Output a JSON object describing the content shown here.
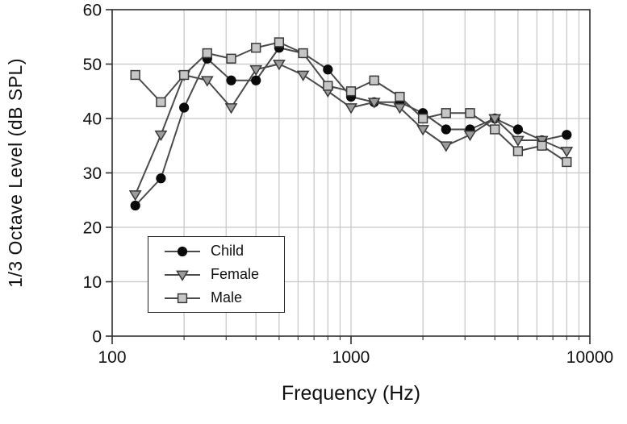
{
  "chart_data": {
    "type": "line",
    "title": "",
    "xlabel": "Frequency (Hz)",
    "ylabel": "1/3 Octave Level (dB SPL)",
    "x_scale": "log",
    "xlim": [
      100,
      10000
    ],
    "ylim": [
      0,
      60
    ],
    "y_ticks": [
      0,
      10,
      20,
      30,
      40,
      50,
      60
    ],
    "x_ticks": [
      100,
      1000,
      10000
    ],
    "x_tick_labels": [
      "100",
      "1000",
      "10000"
    ],
    "grid": true,
    "legend_position": "lower-left",
    "x": [
      125,
      160,
      200,
      250,
      315,
      400,
      500,
      630,
      800,
      1000,
      1250,
      1600,
      2000,
      2500,
      3150,
      4000,
      5000,
      6300,
      8000
    ],
    "series": [
      {
        "name": "Child",
        "marker": "circle",
        "marker_fill": "#0a0a0a",
        "marker_stroke": "#0a0a0a",
        "line_color": "#4a4a4a",
        "values": [
          24,
          29,
          42,
          51,
          47,
          47,
          53,
          52,
          49,
          44,
          43,
          43,
          41,
          38,
          38,
          40,
          38,
          36,
          37
        ]
      },
      {
        "name": "Female",
        "marker": "triangle-down",
        "marker_fill": "#9c9c9c",
        "marker_stroke": "#3a3a3a",
        "line_color": "#4a4a4a",
        "values": [
          26,
          37,
          48,
          47,
          42,
          49,
          50,
          48,
          45,
          42,
          43,
          42,
          38,
          35,
          37,
          40,
          36,
          36,
          34
        ]
      },
      {
        "name": "Male",
        "marker": "square",
        "marker_fill": "#c6c6c6",
        "marker_stroke": "#3a3a3a",
        "line_color": "#4a4a4a",
        "values": [
          48,
          43,
          48,
          52,
          51,
          53,
          54,
          52,
          46,
          45,
          47,
          44,
          40,
          41,
          41,
          38,
          34,
          35,
          32
        ]
      }
    ],
    "colors": {
      "grid": "#c6c6c6",
      "frame": "#2e2e2e",
      "tick_text": "#111111"
    }
  },
  "legend": {
    "items": [
      {
        "label": "Child"
      },
      {
        "label": "Female"
      },
      {
        "label": "Male"
      }
    ]
  }
}
